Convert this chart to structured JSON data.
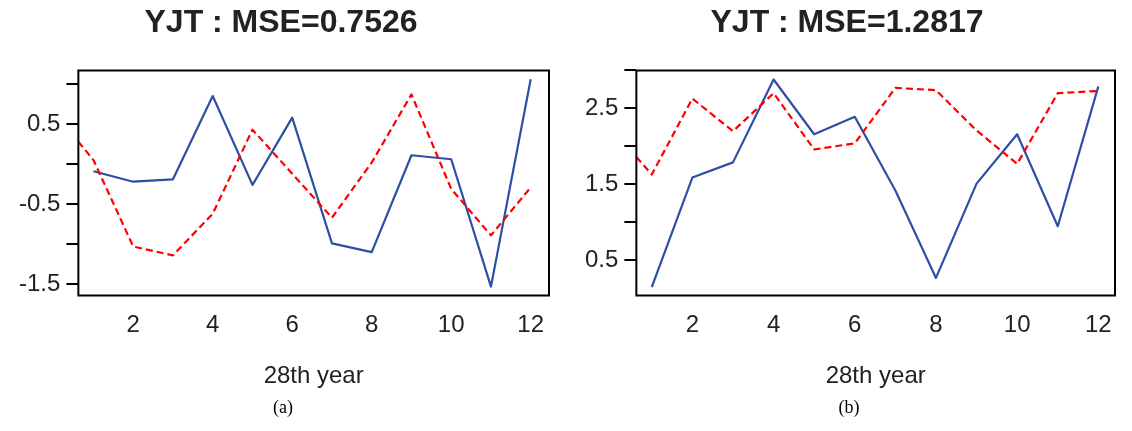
{
  "chart_data": [
    {
      "type": "line",
      "title": "YJT : MSE=0.7526",
      "xlabel": "28th year",
      "annotations": [
        "(a)"
      ],
      "xlim": [
        0.62,
        12.46
      ],
      "xticks": [
        2,
        4,
        6,
        8,
        10,
        12
      ],
      "ylim": [
        -1.64,
        1.17
      ],
      "yticks": [
        {
          "value": -1.5,
          "label": "-1.5"
        },
        {
          "value": -1,
          "label": null
        },
        {
          "value": -0.5,
          "label": "-0.5"
        },
        {
          "value": 0,
          "label": null
        },
        {
          "value": 0.5,
          "label": "0.5"
        },
        {
          "value": 1,
          "label": null
        }
      ],
      "grid": false,
      "series": [
        {
          "color": "#ff0000",
          "line_style": "dashed",
          "x": [
            0.62,
            1,
            2,
            3,
            4,
            5,
            6,
            7,
            8,
            9,
            10,
            11,
            12
          ],
          "values": [
            0.28,
            0.05,
            -1.03,
            -1.14,
            -0.62,
            0.43,
            -0.12,
            -0.67,
            0.02,
            0.87,
            -0.31,
            -0.89,
            -0.29
          ]
        },
        {
          "color": "#2d4fa3",
          "line_style": "solid",
          "x": [
            1,
            2,
            3,
            4,
            5,
            6,
            7,
            8,
            9,
            10,
            11,
            12
          ],
          "values": [
            -0.09,
            -0.22,
            -0.19,
            0.85,
            -0.26,
            0.58,
            -0.99,
            -1.1,
            0.11,
            0.06,
            -1.53,
            1.06
          ]
        }
      ]
    },
    {
      "type": "line",
      "title": "YJT : MSE=1.2817",
      "xlabel": "28th year",
      "annotations": [
        "(b)"
      ],
      "xlim": [
        0.62,
        12.41
      ],
      "xticks": [
        2,
        4,
        6,
        8,
        10,
        12
      ],
      "ylim": [
        0.04,
        3.0
      ],
      "yticks": [
        {
          "value": 0.5,
          "label": "0.5"
        },
        {
          "value": 1,
          "label": null
        },
        {
          "value": 1.5,
          "label": "1.5"
        },
        {
          "value": 2,
          "label": null
        },
        {
          "value": 2.5,
          "label": "2.5"
        },
        {
          "value": 3,
          "label": null
        }
      ],
      "grid": false,
      "series": [
        {
          "color": "#ff0000",
          "line_style": "dashed",
          "x": [
            0.62,
            1,
            2,
            3,
            4,
            5,
            6,
            7,
            8,
            9,
            10,
            11,
            12
          ],
          "values": [
            1.86,
            1.63,
            2.63,
            2.2,
            2.7,
            1.96,
            2.04,
            2.77,
            2.74,
            2.21,
            1.77,
            2.7,
            2.73
          ]
        },
        {
          "color": "#2d4fa3",
          "line_style": "solid",
          "x": [
            1,
            2,
            3,
            4,
            5,
            6,
            7,
            8,
            9,
            10,
            11,
            12
          ],
          "values": [
            0.15,
            1.59,
            1.79,
            2.88,
            2.16,
            2.39,
            1.42,
            0.27,
            1.51,
            2.16,
            0.95,
            2.79
          ]
        }
      ]
    }
  ]
}
